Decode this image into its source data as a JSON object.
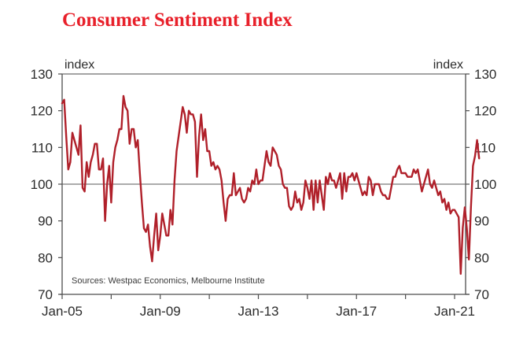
{
  "chart_data": {
    "type": "line",
    "title": "Consumer Sentiment Index",
    "xlabel": "",
    "ylabel_left": "index",
    "ylabel_right": "index",
    "ylim": [
      70,
      130
    ],
    "y_ticks": [
      70,
      80,
      90,
      100,
      110,
      120,
      130
    ],
    "y_tick_labels": [
      "70",
      "80",
      "90",
      "100",
      "110",
      "120",
      "130"
    ],
    "x_start": "Jan-05",
    "x_frequency": "monthly",
    "x_tick_labels": [
      "Jan-05",
      "Jan-09",
      "Jan-13",
      "Jan-17",
      "Jan-21"
    ],
    "x_tick_months": [
      0,
      48,
      96,
      144,
      192
    ],
    "x_minor_tick_months": [
      24,
      72,
      120,
      168
    ],
    "x_range_months": [
      0,
      197
    ],
    "reference_line": 100,
    "grid": false,
    "legend": "none",
    "annotation": "Sources: Westpac Economics, Melbourne Institute",
    "series": [
      {
        "name": "Consumer Sentiment Index",
        "color": "#b0202a",
        "values": [
          122,
          123,
          113,
          104,
          106,
          114,
          112,
          110,
          108,
          116,
          99,
          98,
          106,
          102,
          106,
          108,
          111,
          111,
          104,
          104,
          107,
          90,
          100,
          105,
          95,
          106,
          110,
          112,
          115,
          115,
          124,
          121,
          120,
          111,
          115,
          115,
          110,
          112,
          103,
          95,
          88,
          87,
          89,
          83,
          79,
          86,
          92,
          82,
          86,
          92,
          89,
          86,
          86,
          93,
          89,
          101,
          109,
          113,
          117,
          121,
          119,
          114,
          120,
          119,
          119,
          117,
          102,
          113,
          119,
          112,
          115,
          109,
          109,
          105,
          106,
          104,
          105,
          104,
          101,
          95,
          90,
          96,
          97,
          97,
          103,
          97,
          98,
          99,
          96,
          95,
          96,
          99,
          98,
          101,
          100,
          104,
          100,
          101,
          101,
          105,
          109,
          106,
          105,
          110,
          109,
          108,
          105,
          104,
          100,
          99,
          99,
          94,
          93,
          94,
          98,
          95,
          96,
          93,
          95,
          101,
          99,
          96,
          101,
          93,
          101,
          95,
          101,
          97,
          93,
          102,
          100,
          103,
          101,
          101,
          99,
          101,
          103,
          96,
          103,
          98,
          102,
          102,
          103,
          101,
          103,
          101,
          99,
          97,
          98,
          97,
          102,
          101,
          97,
          100,
          100,
          100,
          98,
          97,
          97,
          96,
          96,
          99,
          102,
          102,
          104,
          105,
          103,
          103,
          103,
          102,
          102,
          102,
          104,
          103,
          104,
          101,
          98,
          100,
          102,
          104,
          100,
          99,
          101,
          99,
          97,
          98,
          95,
          96,
          93,
          95,
          92,
          93,
          93,
          92,
          91,
          75.6,
          88.1,
          93.7,
          87.9,
          79.5,
          93.8,
          105,
          107.7,
          112,
          107
        ]
      }
    ]
  }
}
